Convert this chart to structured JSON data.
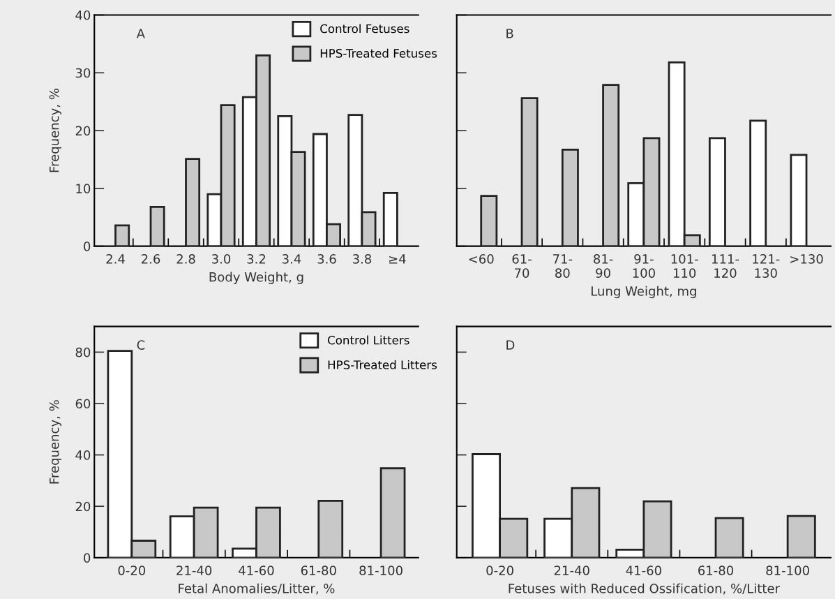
{
  "chart_data": [
    {
      "type": "bar",
      "categories": [
        "2.4",
        "2.6",
        "2.8",
        "3.0",
        "3.2",
        "3.4",
        "3.6",
        "3.8",
        "≥4"
      ],
      "xlabel": "Body Weight, g",
      "ylabel": "Frequency, %",
      "ylim": [
        0,
        40
      ],
      "yticks": [
        0,
        10,
        20,
        30,
        40
      ],
      "legend": "top right",
      "annotations": [
        "A"
      ],
      "series": [
        {
          "name": "Control Fetuses",
          "color": "#ffffff",
          "values": [
            null,
            null,
            null,
            9.0,
            25.8,
            22.5,
            19.4,
            22.7,
            9.2
          ]
        },
        {
          "name": "HPS-Treated Fetuses",
          "color": "#c8c8c8",
          "values": [
            3.6,
            6.8,
            15.1,
            24.4,
            33.0,
            16.3,
            3.8,
            5.9,
            null
          ]
        }
      ]
    },
    {
      "type": "bar",
      "categories": [
        "<60",
        "61-\n70",
        "71-\n80",
        "81-\n90",
        "91-\n100",
        "101-\n110",
        "111-\n120",
        "121-\n130",
        ">130"
      ],
      "xlabel": "Lung Weight, mg",
      "ylim": [
        0,
        40
      ],
      "yticks": [
        0,
        10,
        20,
        30,
        40
      ],
      "tick_labels": "x",
      "annotations": [
        "B"
      ],
      "series": [
        {
          "color": "#ffffff",
          "values": [
            null,
            null,
            null,
            null,
            10.9,
            31.8,
            18.7,
            21.7,
            15.8
          ]
        },
        {
          "color": "#c8c8c8",
          "values": [
            8.7,
            25.6,
            16.7,
            27.9,
            18.7,
            1.9,
            null,
            null,
            null
          ]
        }
      ]
    },
    {
      "type": "bar",
      "categories": [
        "0-20",
        "21-40",
        "41-60",
        "61-80",
        "81-100"
      ],
      "xlabel": "Fetal Anomalies/Litter, %",
      "ylabel": "Frequency, %",
      "ylim": [
        0,
        90
      ],
      "yticks": [
        0,
        20,
        40,
        60,
        80
      ],
      "legend": "top right",
      "annotations": [
        "C"
      ],
      "series": [
        {
          "name": "Control Litters",
          "color": "#ffffff",
          "values": [
            80.5,
            16.1,
            3.5,
            null,
            null
          ]
        },
        {
          "name": "HPS-Treated Litters",
          "color": "#c8c8c8",
          "values": [
            6.6,
            19.5,
            19.5,
            22.1,
            34.8
          ]
        }
      ]
    },
    {
      "type": "bar",
      "categories": [
        "0-20",
        "21-40",
        "41-60",
        "61-80",
        "81-100"
      ],
      "xlabel": "Fetuses with Reduced Ossification, %/Litter",
      "ylim": [
        0,
        90
      ],
      "yticks": [
        0,
        20,
        40,
        60,
        80
      ],
      "tick_labels": "x",
      "annotations": [
        "D"
      ],
      "series": [
        {
          "color": "#ffffff",
          "values": [
            40.3,
            15.1,
            3.1,
            null,
            null
          ]
        },
        {
          "color": "#c8c8c8",
          "values": [
            15.1,
            27.1,
            21.9,
            15.4,
            16.2
          ]
        }
      ]
    }
  ]
}
